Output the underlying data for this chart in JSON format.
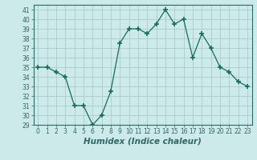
{
  "x": [
    0,
    1,
    2,
    3,
    4,
    5,
    6,
    7,
    8,
    9,
    10,
    11,
    12,
    13,
    14,
    15,
    16,
    17,
    18,
    19,
    20,
    21,
    22,
    23
  ],
  "y": [
    35,
    35,
    34.5,
    34,
    31,
    31,
    29,
    30,
    32.5,
    37.5,
    39,
    39,
    38.5,
    39.5,
    41,
    39.5,
    40,
    36,
    38.5,
    37,
    35,
    34.5,
    33.5,
    33
  ],
  "line_color": "#1a6b5a",
  "marker": "+",
  "marker_size": 4,
  "bg_color": "#cceaea",
  "grid_color": "#aacccc",
  "xlabel": "Humidex (Indice chaleur)",
  "ylim": [
    29,
    41.5
  ],
  "xlim": [
    -0.5,
    23.5
  ],
  "yticks": [
    29,
    30,
    31,
    32,
    33,
    34,
    35,
    36,
    37,
    38,
    39,
    40,
    41
  ],
  "xticks": [
    0,
    1,
    2,
    3,
    4,
    5,
    6,
    7,
    8,
    9,
    10,
    11,
    12,
    13,
    14,
    15,
    16,
    17,
    18,
    19,
    20,
    21,
    22,
    23
  ],
  "tick_fontsize": 5.5,
  "xlabel_fontsize": 7.5
}
